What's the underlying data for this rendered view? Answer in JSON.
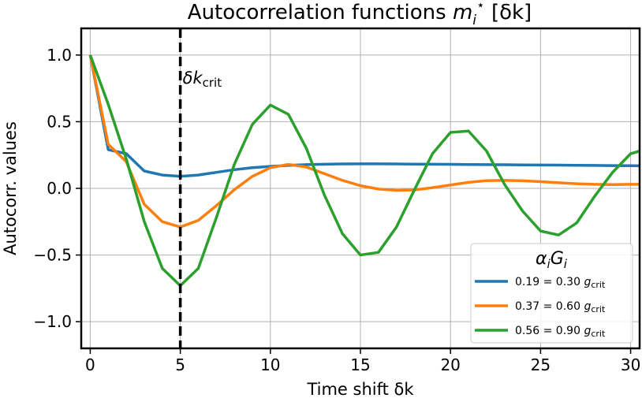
{
  "chart_data": {
    "type": "line",
    "title": "Autocorrelation functions m_i*[δk]",
    "title_parts": {
      "prefix": "Autocorrelation functions ",
      "var": "m",
      "sub": "i",
      "sup": "⋆",
      "suffix": " [δk]"
    },
    "xlabel": "Time shift δk",
    "ylabel": "Autocorr. values",
    "xlim": [
      -0.5,
      30.5
    ],
    "ylim": [
      -1.2,
      1.2
    ],
    "xticks": [
      0,
      5,
      10,
      15,
      20,
      25,
      30
    ],
    "xtick_labels": [
      "0",
      "5",
      "10",
      "15",
      "20",
      "25",
      "30"
    ],
    "yticks": [
      -1.0,
      -0.5,
      0.0,
      0.5,
      1.0
    ],
    "ytick_labels": [
      "−1.0",
      "−0.5",
      "0.0",
      "0.5",
      "1.0"
    ],
    "grid": true,
    "legend_position": "lower-right",
    "legend_title": "α_i G_i",
    "annotation": {
      "x": 5,
      "label": "δk",
      "sub": "crit",
      "style": "dashed-vertical-line"
    },
    "x": [
      0,
      1,
      2,
      3,
      4,
      5,
      6,
      7,
      8,
      9,
      10,
      11,
      12,
      13,
      14,
      15,
      16,
      17,
      18,
      19,
      20,
      21,
      22,
      23,
      24,
      25,
      26,
      27,
      28,
      29,
      30,
      31
    ],
    "series": [
      {
        "name": "0.19 = 0.30 g_crit",
        "label_prefix": "0.19 = 0.30 ",
        "color": "#1f77b4",
        "values": [
          1.0,
          0.29,
          0.26,
          0.13,
          0.1,
          0.09,
          0.1,
          0.12,
          0.14,
          0.155,
          0.165,
          0.172,
          0.178,
          0.181,
          0.183,
          0.184,
          0.184,
          0.183,
          0.182,
          0.181,
          0.18,
          0.179,
          0.178,
          0.177,
          0.176,
          0.175,
          0.174,
          0.173,
          0.172,
          0.171,
          0.17,
          0.169
        ]
      },
      {
        "name": "0.37 = 0.60 g_crit",
        "label_prefix": "0.37 = 0.60 ",
        "color": "#ff7f0e",
        "values": [
          1.0,
          0.33,
          0.2,
          -0.12,
          -0.25,
          -0.29,
          -0.24,
          -0.13,
          -0.01,
          0.09,
          0.155,
          0.18,
          0.16,
          0.11,
          0.06,
          0.02,
          -0.005,
          -0.015,
          -0.012,
          0.005,
          0.025,
          0.045,
          0.058,
          0.06,
          0.057,
          0.05,
          0.042,
          0.035,
          0.03,
          0.028,
          0.03,
          0.03
        ]
      },
      {
        "name": "0.56 = 0.90 g_crit",
        "label_prefix": "0.56 = 0.90 ",
        "color": "#2ca02c",
        "values": [
          1.0,
          0.63,
          0.22,
          -0.25,
          -0.6,
          -0.73,
          -0.6,
          -0.22,
          0.18,
          0.48,
          0.625,
          0.555,
          0.3,
          -0.05,
          -0.34,
          -0.5,
          -0.48,
          -0.29,
          -0.01,
          0.26,
          0.42,
          0.43,
          0.28,
          0.03,
          -0.17,
          -0.32,
          -0.35,
          -0.26,
          -0.06,
          0.12,
          0.26,
          0.3
        ]
      }
    ]
  }
}
